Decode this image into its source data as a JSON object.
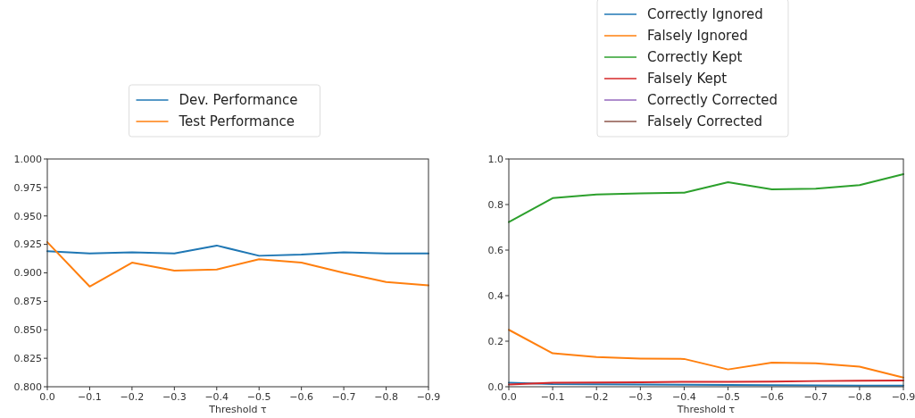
{
  "chart_data": [
    {
      "type": "line",
      "xlabel": "Threshold τ",
      "x": [
        0,
        -0.1,
        -0.2,
        -0.3,
        -0.4,
        -0.5,
        -0.6,
        -0.7,
        -0.8,
        -0.9
      ],
      "series": [
        {
          "name": "Dev. Performance",
          "color": "#1f77b4",
          "values": [
            0.919,
            0.917,
            0.918,
            0.917,
            0.924,
            0.915,
            0.916,
            0.918,
            0.917,
            0.917
          ]
        },
        {
          "name": "Test Performance",
          "color": "#ff7f0e",
          "values": [
            0.927,
            0.888,
            0.909,
            0.902,
            0.903,
            0.912,
            0.909,
            0.9,
            0.892,
            0.889
          ]
        }
      ],
      "xlim": [
        0,
        -0.9
      ],
      "xticks": [
        {
          "value": 0,
          "label": "0.0"
        },
        {
          "value": -0.1,
          "label": "−0.1"
        },
        {
          "value": -0.2,
          "label": "−0.2"
        },
        {
          "value": -0.3,
          "label": "−0.3"
        },
        {
          "value": -0.4,
          "label": "−0.4"
        },
        {
          "value": -0.5,
          "label": "−0.5"
        },
        {
          "value": -0.6,
          "label": "−0.6"
        },
        {
          "value": -0.7,
          "label": "−0.7"
        },
        {
          "value": -0.8,
          "label": "−0.8"
        },
        {
          "value": -0.9,
          "label": "−0.9"
        }
      ],
      "ylim": [
        0.8,
        1.0
      ],
      "yticks": [
        {
          "value": 0.8,
          "label": "0.800"
        },
        {
          "value": 0.825,
          "label": "0.825"
        },
        {
          "value": 0.85,
          "label": "0.850"
        },
        {
          "value": 0.875,
          "label": "0.875"
        },
        {
          "value": 0.9,
          "label": "0.900"
        },
        {
          "value": 0.925,
          "label": "0.925"
        },
        {
          "value": 0.95,
          "label": "0.950"
        },
        {
          "value": 0.975,
          "label": "0.975"
        },
        {
          "value": 1.0,
          "label": "1.000"
        }
      ],
      "grid": false,
      "legend": "top"
    },
    {
      "type": "line",
      "xlabel": "Threshold τ",
      "x": [
        0,
        -0.1,
        -0.2,
        -0.3,
        -0.4,
        -0.5,
        -0.6,
        -0.7,
        -0.8,
        -0.9
      ],
      "series": [
        {
          "name": "Correctly Ignored",
          "color": "#1f77b4",
          "values": [
            0.018,
            0.012,
            0.011,
            0.01,
            0.009,
            0.008,
            0.007,
            0.006,
            0.005,
            0.005
          ]
        },
        {
          "name": "Falsely Ignored",
          "color": "#ff7f0e",
          "values": [
            0.25,
            0.147,
            0.13,
            0.124,
            0.122,
            0.076,
            0.106,
            0.103,
            0.088,
            0.04
          ]
        },
        {
          "name": "Correctly Kept",
          "color": "#2ca02c",
          "values": [
            0.723,
            0.828,
            0.844,
            0.849,
            0.852,
            0.898,
            0.867,
            0.87,
            0.885,
            0.933
          ]
        },
        {
          "name": "Falsely Kept",
          "color": "#d62728",
          "values": [
            0.01,
            0.018,
            0.019,
            0.02,
            0.022,
            0.022,
            0.023,
            0.025,
            0.026,
            0.027
          ]
        },
        {
          "name": "Correctly Corrected",
          "color": "#9467bd",
          "values": [
            null,
            null,
            null,
            null,
            null,
            null,
            null,
            null,
            null,
            null
          ]
        },
        {
          "name": "Falsely Corrected",
          "color": "#8c564b",
          "values": [
            null,
            null,
            null,
            null,
            null,
            null,
            null,
            null,
            null,
            null
          ]
        }
      ],
      "xlim": [
        0,
        -0.9
      ],
      "xticks": [
        {
          "value": 0,
          "label": "0.0"
        },
        {
          "value": -0.1,
          "label": "−0.1"
        },
        {
          "value": -0.2,
          "label": "−0.2"
        },
        {
          "value": -0.3,
          "label": "−0.3"
        },
        {
          "value": -0.4,
          "label": "−0.4"
        },
        {
          "value": -0.5,
          "label": "−0.5"
        },
        {
          "value": -0.6,
          "label": "−0.6"
        },
        {
          "value": -0.7,
          "label": "−0.7"
        },
        {
          "value": -0.8,
          "label": "−0.8"
        },
        {
          "value": -0.9,
          "label": "−0.9"
        }
      ],
      "ylim": [
        0,
        1.0
      ],
      "yticks": [
        {
          "value": 0,
          "label": "0.0"
        },
        {
          "value": 0.2,
          "label": "0.2"
        },
        {
          "value": 0.4,
          "label": "0.4"
        },
        {
          "value": 0.6,
          "label": "0.6"
        },
        {
          "value": 0.8,
          "label": "0.8"
        },
        {
          "value": 1.0,
          "label": "1.0"
        }
      ],
      "grid": false,
      "legend": "top"
    }
  ]
}
